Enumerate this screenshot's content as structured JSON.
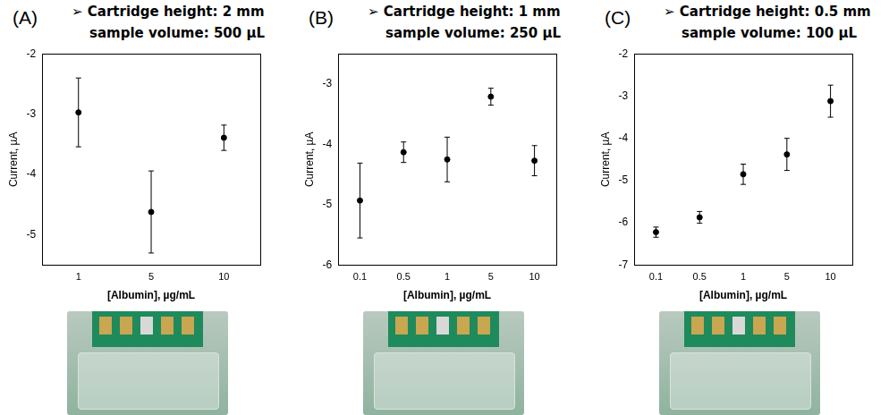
{
  "chart_data": [
    {
      "type": "scatter",
      "panel_label": "(A)",
      "title": "➢ Cartridge height: 2 mm",
      "subtitle": "sample volume: 500 µL",
      "x_label": "[Albumin], µg/mL",
      "y_label": "Current, µA",
      "categories": [
        "1",
        "5",
        "10"
      ],
      "values": [
        -2.97,
        -4.62,
        -3.39
      ],
      "errors": [
        0.57,
        0.68,
        0.21
      ],
      "ylim": [
        -5.5,
        -2
      ],
      "yticks": [
        -5,
        -4,
        -3,
        -2
      ],
      "grid": false,
      "color": "#000000",
      "marker": "circle"
    },
    {
      "type": "scatter",
      "panel_label": "(B)",
      "title": "➢ Cartridge height: 1 mm",
      "subtitle": "sample volume: 250 µL",
      "x_label": "[Albumin], µg/mL",
      "y_label": "Current, µA",
      "categories": [
        "0.1",
        "0.5",
        "1",
        "5",
        "10"
      ],
      "values": [
        -4.93,
        -4.13,
        -4.25,
        -3.21,
        -4.27
      ],
      "errors": [
        0.62,
        0.17,
        0.37,
        0.14,
        0.25
      ],
      "ylim": [
        -6,
        -2.5
      ],
      "yticks": [
        -6,
        -5,
        -4,
        -3
      ],
      "grid": false,
      "color": "#000000",
      "marker": "circle"
    },
    {
      "type": "scatter",
      "panel_label": "(C)",
      "title": "➢ Cartridge height: 0.5 mm",
      "subtitle": "sample volume: 100 µL",
      "x_label": "[Albumin], µg/mL",
      "y_label": "Current, µA",
      "categories": [
        "0.1",
        "0.5",
        "1",
        "5",
        "10"
      ],
      "values": [
        -6.22,
        -5.87,
        -4.85,
        -4.38,
        -3.12
      ],
      "errors": [
        0.12,
        0.14,
        0.24,
        0.38,
        0.38
      ],
      "ylim": [
        -7,
        -2
      ],
      "yticks": [
        -7,
        -6,
        -5,
        -4,
        -3,
        -2
      ],
      "grid": false,
      "color": "#000000",
      "marker": "circle"
    }
  ]
}
